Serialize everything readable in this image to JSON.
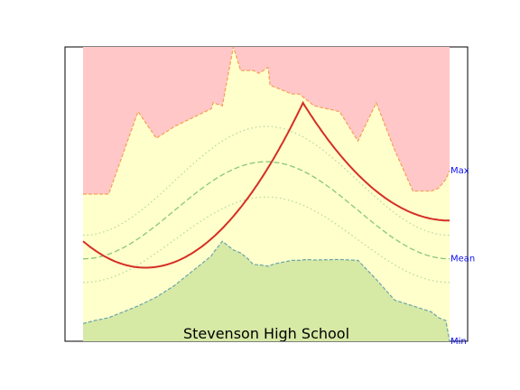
{
  "chart_data": {
    "type": "area",
    "title": "Stevenson High School",
    "xlabel": "",
    "ylabel": "",
    "grid": false,
    "legend": "none",
    "axes_ticks_visible": false,
    "xlim": [
      0,
      100
    ],
    "ylim": [
      0,
      100
    ],
    "edge_labels": [
      "Max",
      "Mean",
      "Min"
    ],
    "x": [
      0,
      3,
      7,
      15,
      20,
      25,
      30,
      35,
      35.5,
      38,
      41,
      43,
      45,
      46.5,
      48,
      50.5,
      51,
      53,
      55,
      57,
      59,
      61,
      63,
      70,
      75,
      80,
      85,
      90,
      95,
      97,
      99,
      100
    ],
    "series": [
      {
        "name": "Max",
        "values": [
          50,
          50,
          50,
          78,
          69,
          73,
          76,
          79,
          81,
          80,
          100,
          92,
          92,
          92,
          91,
          93,
          87,
          86,
          85,
          84,
          84,
          82,
          80,
          78,
          68,
          81,
          65,
          51,
          51,
          52,
          55,
          58
        ]
      },
      {
        "name": "Min",
        "values": [
          6,
          7,
          8,
          12,
          15,
          19,
          24,
          29,
          30,
          34,
          31,
          30,
          28,
          26,
          26,
          25.5,
          25.8,
          26.5,
          27,
          27.5,
          27.5,
          27.8,
          27.6,
          27.8,
          27.5,
          21,
          14,
          12,
          10,
          8,
          7,
          0
        ]
      }
    ],
    "bands": {
      "max_fill": "#ffc7c7",
      "mid_fill": "#ffffcc",
      "min_fill": "#d6e9a5"
    },
    "smooth_curves": [
      {
        "name": "",
        "style": "dashed",
        "color": "#88c878",
        "center": 50,
        "peak": 61,
        "low": 28
      },
      {
        "name": "",
        "style": "dotted",
        "color": "#b8d8a6",
        "center": 50,
        "peak": 73,
        "low": 36
      },
      {
        "name": "",
        "style": "dotted",
        "color": "#b8d8a6",
        "center": 50,
        "peak": 49,
        "low": 20
      }
    ],
    "trend_line": {
      "color": "#d42f25",
      "vertex_x": 17,
      "vertex_y": 25,
      "peak_x": 60,
      "peak_y": 81,
      "end_x": 100,
      "end_y": 41,
      "start_y": 34
    },
    "colors": {
      "max_edge": "#f5a05a",
      "min_edge": "#6aa5a8",
      "label": "#1010ee",
      "frame": "#000000"
    }
  }
}
